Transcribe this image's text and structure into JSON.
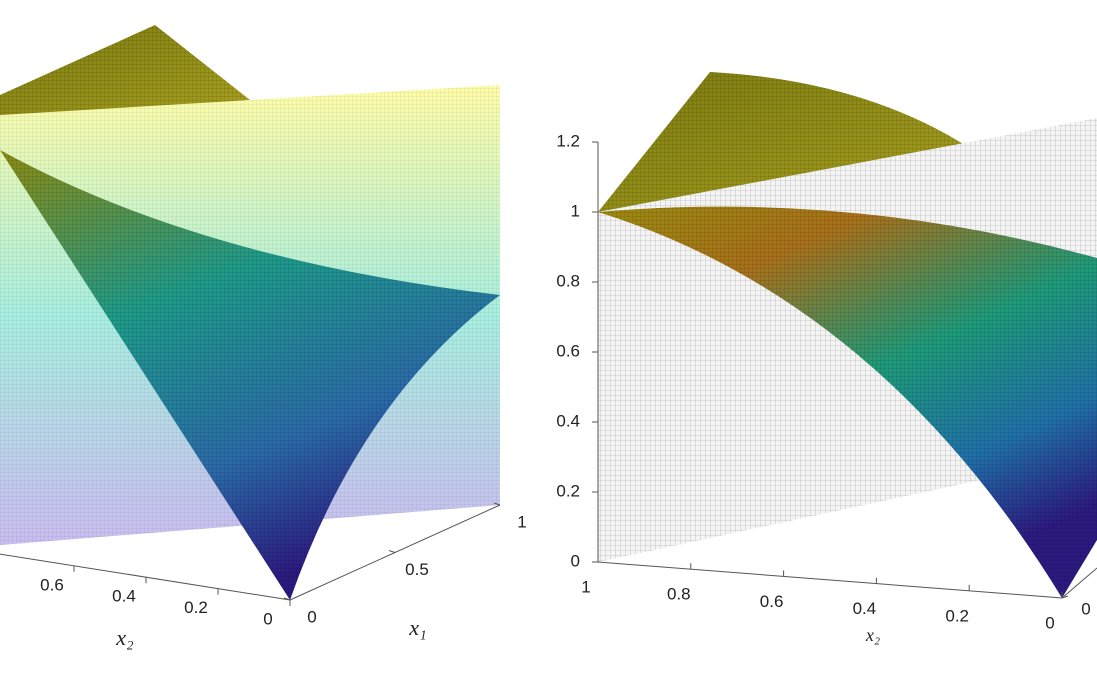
{
  "chart_data": [
    {
      "type": "surface",
      "xlabel": "x₂",
      "ylabel": "x₁",
      "xlim": [
        0,
        1
      ],
      "xticks": [
        0,
        0.2,
        0.4,
        0.6
      ],
      "ylim": [
        0,
        1
      ],
      "yticks": [
        0,
        0.5,
        1
      ]
    },
    {
      "type": "surface",
      "xlabel": "x₂",
      "xlim": [
        0,
        1
      ],
      "xticks": [
        0,
        0.2,
        0.4,
        0.6,
        0.8,
        1
      ],
      "ylim": [
        0,
        1
      ],
      "yticks": [
        0
      ],
      "zlim": [
        0,
        1.2
      ],
      "zticks": [
        0,
        0.2,
        0.4,
        0.6,
        0.8,
        1,
        1.2
      ]
    }
  ]
}
